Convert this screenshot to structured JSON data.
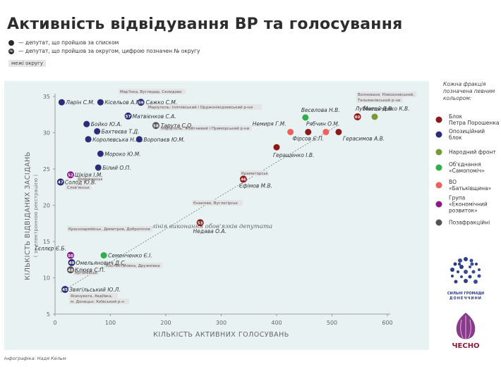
{
  "header": {
    "title": "Активність відвідування ВР та голосування",
    "legend_list": "— депутат, що пройшов за списком",
    "legend_district": "— депутат, що пройшов за округом, цифрою позначен  № округу",
    "legend_district_marker": "№",
    "bounds_label": "межі округу"
  },
  "credit": "Інфографіка: Надя Кельм",
  "colors": {
    "bpp": "#8b1a1a",
    "opposition": "#2b2d7a",
    "front": "#7a9a3a",
    "samopomich": "#2fae4a",
    "batkivshchyna": "#f0605a",
    "ekonom": "#8a1a8a",
    "nonfaction": "#555555",
    "plot_bg": "#e8f2f3"
  },
  "factions_note": "Кожна фракція позначена певним кольором:",
  "factions": [
    {
      "key": "bpp",
      "label": "Блок Петра Порошенка",
      "color": "#8b1a1a"
    },
    {
      "key": "opposition",
      "label": "Опозиційний блок",
      "color": "#2b2d7a"
    },
    {
      "key": "front",
      "label": "Народний фронт",
      "color": "#7a9a3a"
    },
    {
      "key": "samopomich",
      "label": "Об'єднання «Самопоміч»",
      "color": "#2fae4a"
    },
    {
      "key": "batkivshchyna",
      "label": "ВО «Батьківщина»",
      "color": "#f0605a"
    },
    {
      "key": "ekonom",
      "label": "Група «Економічний розвиток»",
      "color": "#8a1a8a"
    },
    {
      "key": "nonfaction",
      "label": "Позафракційні",
      "color": "#555555"
    }
  ],
  "logos": {
    "chesno_top": "СИЛЬНІ ГРОМАДИ",
    "chesno_bottom": "ДОНЕЧЧИНИ",
    "chesno": "ЧЕСНО"
  },
  "chart_data": {
    "type": "scatter",
    "xlabel": "КІЛЬКІСТЬ АКТИВНИХ ГОЛОСУВАНЬ",
    "ylabel": "КІЛЬКІСТЬ ВІДВІДАНИХ ЗАСІДАНЬ",
    "ylabel_sub": "( за електронною реєстрацією )",
    "xlim": [
      0,
      600
    ],
    "ylim": [
      5,
      35
    ],
    "xticks": [
      0,
      100,
      200,
      300,
      400,
      500,
      600
    ],
    "yticks": [
      5,
      10,
      15,
      20,
      25,
      30,
      35
    ],
    "duty_line_label": "лінія виконання обов'язків депутата",
    "duty_line": [
      [
        10,
        8
      ],
      [
        510,
        31
      ]
    ],
    "points": [
      {
        "name": "Ларін С.М.",
        "x": 12,
        "y": 34.2,
        "faction": "opposition",
        "district": ""
      },
      {
        "name": "Кісельов А.М.",
        "x": 82,
        "y": 34.2,
        "faction": "opposition",
        "district": ""
      },
      {
        "name": "Сажко С.М.",
        "x": 155,
        "y": 34.2,
        "faction": "opposition",
        "district": "59",
        "region": "Мар'їнка, Вугледар, Селидово"
      },
      {
        "name": "Матвієнков С.А.",
        "x": 132,
        "y": 32.3,
        "faction": "opposition",
        "district": "57",
        "region": "Маріуполь: Іллічівський і Орджонікідзевський р-ни"
      },
      {
        "name": "Бойко Ю.А.",
        "x": 57,
        "y": 31.2,
        "faction": "opposition",
        "district": ""
      },
      {
        "name": "Тарута С.О.",
        "x": 182,
        "y": 31.0,
        "faction": "nonfaction",
        "district": "58",
        "region": "Маріуполь: Жовтневий і Приморський р-ни"
      },
      {
        "name": "Бахтеєва Т.Д.",
        "x": 76,
        "y": 30.2,
        "faction": "opposition",
        "district": ""
      },
      {
        "name": "Королевська Н.Ю.",
        "x": 60,
        "y": 29.1,
        "faction": "opposition",
        "district": ""
      },
      {
        "name": "Воропаєв Ю.М.",
        "x": 152,
        "y": 29.1,
        "faction": "opposition",
        "district": ""
      },
      {
        "name": "Мороко Ю.М.",
        "x": 82,
        "y": 27.1,
        "faction": "opposition",
        "district": ""
      },
      {
        "name": "Білий О.П.",
        "x": 78,
        "y": 25.2,
        "faction": "opposition",
        "district": ""
      },
      {
        "name": "Шкіря І.М.",
        "x": 28,
        "y": 24.2,
        "faction": "ekonom",
        "district": "52",
        "region": "Дзержинськ"
      },
      {
        "name": "Солод Ю.В.",
        "x": 10,
        "y": 23.2,
        "faction": "opposition",
        "district": "47",
        "region": "Слов'янськ"
      },
      {
        "name": "Гєллєр Є.Б.",
        "x": 28,
        "y": 13.1,
        "faction": "ekonom",
        "district": "50",
        "region": "Красноармійськ, Димитров, Добропілля"
      },
      {
        "name": "Семенченко Є.І.",
        "x": 88,
        "y": 13.1,
        "faction": "samopomich",
        "district": ""
      },
      {
        "name": "Омельянович Д.С.",
        "x": 30,
        "y": 12.1,
        "faction": "opposition",
        "district": "49",
        "region": "Артемівськ"
      },
      {
        "name": "Клюєв С.П.",
        "x": 28,
        "y": 11.1,
        "faction": "nonfaction",
        "district": "48",
        "region": "Костянтинівка, Дружківка"
      },
      {
        "name": "Звягільський Ю.Л.",
        "x": 18,
        "y": 8.4,
        "faction": "opposition",
        "district": "45",
        "region": "Ясинувата, Авдіївка, м. Донецьк: Київський р-н"
      },
      {
        "name": "Недава О.А.",
        "x": 262,
        "y": 17.6,
        "faction": "bpp",
        "district": "53",
        "region": "Єнакієве, Вуглегірськ"
      },
      {
        "name": "Єфімов М.В.",
        "x": 340,
        "y": 23.6,
        "faction": "bpp",
        "district": "46",
        "region": "Краматорськ"
      },
      {
        "name": "Геращенко І.В.",
        "x": 400,
        "y": 28.0,
        "faction": "bpp",
        "district": ""
      },
      {
        "name": "Веселова Н.В.",
        "x": 452,
        "y": 32.1,
        "faction": "samopomich",
        "district": ""
      },
      {
        "name": "Немиря Г.М.",
        "x": 425,
        "y": 30.1,
        "faction": "batkivshchyna",
        "district": ""
      },
      {
        "name": "Фірсов Є.П.",
        "x": 457,
        "y": 30.1,
        "faction": "bpp",
        "district": ""
      },
      {
        "name": "Рябчин О.М.",
        "x": 489,
        "y": 30.1,
        "faction": "batkivshchyna",
        "district": ""
      },
      {
        "name": "Герасимов А.В.",
        "x": 512,
        "y": 30.1,
        "faction": "bpp",
        "district": ""
      },
      {
        "name": "Лубінець Д.В.",
        "x": 546,
        "y": 32.2,
        "faction": "bpp",
        "district": "60",
        "region": "Волновахи, Новоазовський, Тельманівський р-ни"
      },
      {
        "name": "Матейченко К.В.",
        "x": 577,
        "y": 32.2,
        "faction": "front",
        "district": ""
      }
    ]
  }
}
